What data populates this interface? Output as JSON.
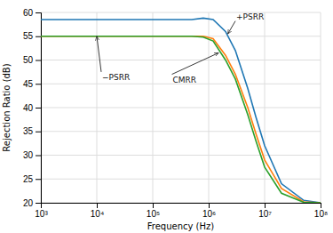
{
  "chart_data": {
    "type": "line",
    "xlabel": "Frequency (Hz)",
    "ylabel": "Rejection Ratio (dB)",
    "log": "x",
    "grid": true,
    "xlim": [
      1000,
      100000000
    ],
    "ylim": [
      20,
      60
    ],
    "xticks": [
      {
        "value": 1000,
        "label": "10³"
      },
      {
        "value": 10000,
        "label": "10⁴"
      },
      {
        "value": 100000,
        "label": "10⁵"
      },
      {
        "value": 1000000,
        "label": "10⁶"
      },
      {
        "value": 10000000,
        "label": "10⁷"
      },
      {
        "value": 100000000,
        "label": "10⁸"
      }
    ],
    "yticks": [
      20,
      25,
      30,
      35,
      40,
      45,
      50,
      55,
      60
    ],
    "x": [
      1000,
      10000,
      100000,
      500000,
      800000,
      1200000,
      2000000,
      3000000,
      5000000,
      7000000,
      10000000,
      20000000,
      50000000,
      100000000
    ],
    "series": [
      {
        "name": "+PSRR",
        "values": [
          58.5,
          58.5,
          58.5,
          58.5,
          58.8,
          58.5,
          56.0,
          52.0,
          44.0,
          38.0,
          32.0,
          24.0,
          20.5,
          20.0
        ]
      },
      {
        "name": "−PSRR",
        "values": [
          55.0,
          55.0,
          55.0,
          55.0,
          55.0,
          54.5,
          51.0,
          47.0,
          40.0,
          34.5,
          29.0,
          23.0,
          20.2,
          20.0
        ]
      },
      {
        "name": "CMRR",
        "values": [
          55.0,
          55.0,
          55.0,
          55.0,
          54.8,
          54.0,
          50.0,
          46.0,
          38.5,
          33.0,
          27.5,
          22.0,
          20.1,
          20.0
        ]
      }
    ],
    "annotations": [
      {
        "text": "+PSRR",
        "xy": [
          2200000,
          55.5
        ],
        "xytext": [
          3000000,
          58.2
        ]
      },
      {
        "text": "−PSRR",
        "xy": [
          10000,
          55.0
        ],
        "xytext": [
          12000,
          47.5
        ]
      },
      {
        "text": "CMRR",
        "xy": [
          1500000,
          51.5
        ],
        "xytext": [
          220000,
          47.0
        ]
      }
    ]
  }
}
